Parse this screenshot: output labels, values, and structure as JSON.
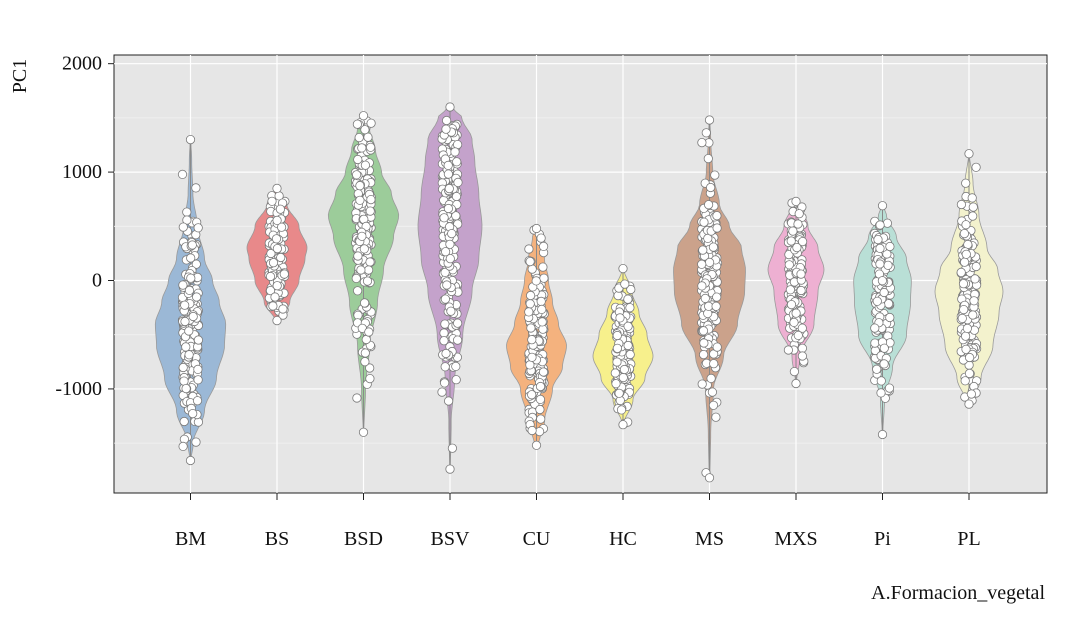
{
  "chart_data": {
    "type": "violin",
    "title": "",
    "xlabel": "A.Formacion_vegetal",
    "ylabel": "PC1",
    "ylim": [
      -1960,
      2080
    ],
    "yticks": [
      2000,
      1000,
      0,
      -1000
    ],
    "ytick_labels": [
      "2000",
      "1000",
      "0",
      "-1000"
    ],
    "grid": true,
    "legend": "none",
    "categories": [
      "BM",
      "BS",
      "BSD",
      "BSV",
      "CU",
      "HC",
      "MS",
      "MXS",
      "Pi",
      "PL"
    ],
    "series": [
      {
        "category": "BM",
        "color": "#9bb8d6",
        "min": -1660,
        "max": 1300,
        "median": -480,
        "profile": [
          [
            -1660,
            0.01
          ],
          [
            -1500,
            0.07
          ],
          [
            -1200,
            0.35
          ],
          [
            -900,
            0.65
          ],
          [
            -600,
            0.85
          ],
          [
            -400,
            0.88
          ],
          [
            -200,
            0.72
          ],
          [
            0,
            0.55
          ],
          [
            200,
            0.35
          ],
          [
            500,
            0.17
          ],
          [
            800,
            0.06
          ],
          [
            1100,
            0.03
          ],
          [
            1300,
            0.01
          ]
        ]
      },
      {
        "category": "BS",
        "color": "#e8898a",
        "min": -370,
        "max": 850,
        "median": 280,
        "profile": [
          [
            -370,
            0.05
          ],
          [
            -200,
            0.32
          ],
          [
            0,
            0.55
          ],
          [
            200,
            0.7
          ],
          [
            300,
            0.75
          ],
          [
            500,
            0.55
          ],
          [
            700,
            0.25
          ],
          [
            850,
            0.05
          ]
        ]
      },
      {
        "category": "BSD",
        "color": "#9ccc9a",
        "min": -1400,
        "max": 1520,
        "median": 470,
        "profile": [
          [
            -1400,
            0.01
          ],
          [
            -1000,
            0.05
          ],
          [
            -600,
            0.15
          ],
          [
            -200,
            0.35
          ],
          [
            100,
            0.5
          ],
          [
            400,
            0.75
          ],
          [
            600,
            0.88
          ],
          [
            800,
            0.7
          ],
          [
            1000,
            0.45
          ],
          [
            1200,
            0.3
          ],
          [
            1400,
            0.15
          ],
          [
            1520,
            0.05
          ]
        ]
      },
      {
        "category": "BSV",
        "color": "#c4a2cb",
        "min": -1740,
        "max": 1600,
        "median": 380,
        "profile": [
          [
            -1740,
            0.01
          ],
          [
            -1300,
            0.03
          ],
          [
            -900,
            0.12
          ],
          [
            -500,
            0.32
          ],
          [
            -100,
            0.55
          ],
          [
            200,
            0.72
          ],
          [
            500,
            0.8
          ],
          [
            800,
            0.72
          ],
          [
            1100,
            0.62
          ],
          [
            1300,
            0.55
          ],
          [
            1500,
            0.3
          ],
          [
            1600,
            0.05
          ]
        ]
      },
      {
        "category": "CU",
        "color": "#f4b27e",
        "min": -1520,
        "max": 480,
        "median": -550,
        "profile": [
          [
            -1520,
            0.05
          ],
          [
            -1300,
            0.2
          ],
          [
            -1000,
            0.4
          ],
          [
            -800,
            0.65
          ],
          [
            -600,
            0.75
          ],
          [
            -400,
            0.55
          ],
          [
            -200,
            0.4
          ],
          [
            0,
            0.3
          ],
          [
            200,
            0.2
          ],
          [
            400,
            0.1
          ],
          [
            480,
            0.03
          ]
        ]
      },
      {
        "category": "HC",
        "color": "#f7f08c",
        "min": -1330,
        "max": 110,
        "median": -680,
        "profile": [
          [
            -1330,
            0.02
          ],
          [
            -1100,
            0.25
          ],
          [
            -900,
            0.55
          ],
          [
            -700,
            0.75
          ],
          [
            -500,
            0.6
          ],
          [
            -300,
            0.4
          ],
          [
            -100,
            0.22
          ],
          [
            110,
            0.02
          ]
        ]
      },
      {
        "category": "MS",
        "color": "#cba28b",
        "min": -1820,
        "max": 1480,
        "median": 10,
        "profile": [
          [
            -1820,
            0.01
          ],
          [
            -1400,
            0.03
          ],
          [
            -1000,
            0.1
          ],
          [
            -700,
            0.35
          ],
          [
            -400,
            0.7
          ],
          [
            -100,
            0.88
          ],
          [
            100,
            0.9
          ],
          [
            300,
            0.8
          ],
          [
            500,
            0.5
          ],
          [
            700,
            0.25
          ],
          [
            1000,
            0.08
          ],
          [
            1300,
            0.03
          ],
          [
            1480,
            0.01
          ]
        ]
      },
      {
        "category": "MXS",
        "color": "#eeb0d2",
        "min": -950,
        "max": 730,
        "median": 120,
        "profile": [
          [
            -950,
            0.01
          ],
          [
            -700,
            0.1
          ],
          [
            -400,
            0.45
          ],
          [
            -100,
            0.55
          ],
          [
            100,
            0.7
          ],
          [
            300,
            0.55
          ],
          [
            500,
            0.3
          ],
          [
            730,
            0.05
          ]
        ]
      },
      {
        "category": "Pi",
        "color": "#b9dfd6",
        "min": -1420,
        "max": 690,
        "median": -150,
        "profile": [
          [
            -1420,
            0.01
          ],
          [
            -1100,
            0.05
          ],
          [
            -800,
            0.25
          ],
          [
            -500,
            0.6
          ],
          [
            -200,
            0.7
          ],
          [
            0,
            0.72
          ],
          [
            200,
            0.6
          ],
          [
            400,
            0.35
          ],
          [
            600,
            0.1
          ],
          [
            690,
            0.02
          ]
        ]
      },
      {
        "category": "PL",
        "color": "#f3f2cd",
        "min": -1140,
        "max": 1170,
        "median": -120,
        "profile": [
          [
            -1140,
            0.05
          ],
          [
            -900,
            0.3
          ],
          [
            -600,
            0.6
          ],
          [
            -300,
            0.75
          ],
          [
            -100,
            0.85
          ],
          [
            100,
            0.72
          ],
          [
            300,
            0.45
          ],
          [
            600,
            0.25
          ],
          [
            900,
            0.1
          ],
          [
            1170,
            0.01
          ]
        ]
      }
    ]
  }
}
